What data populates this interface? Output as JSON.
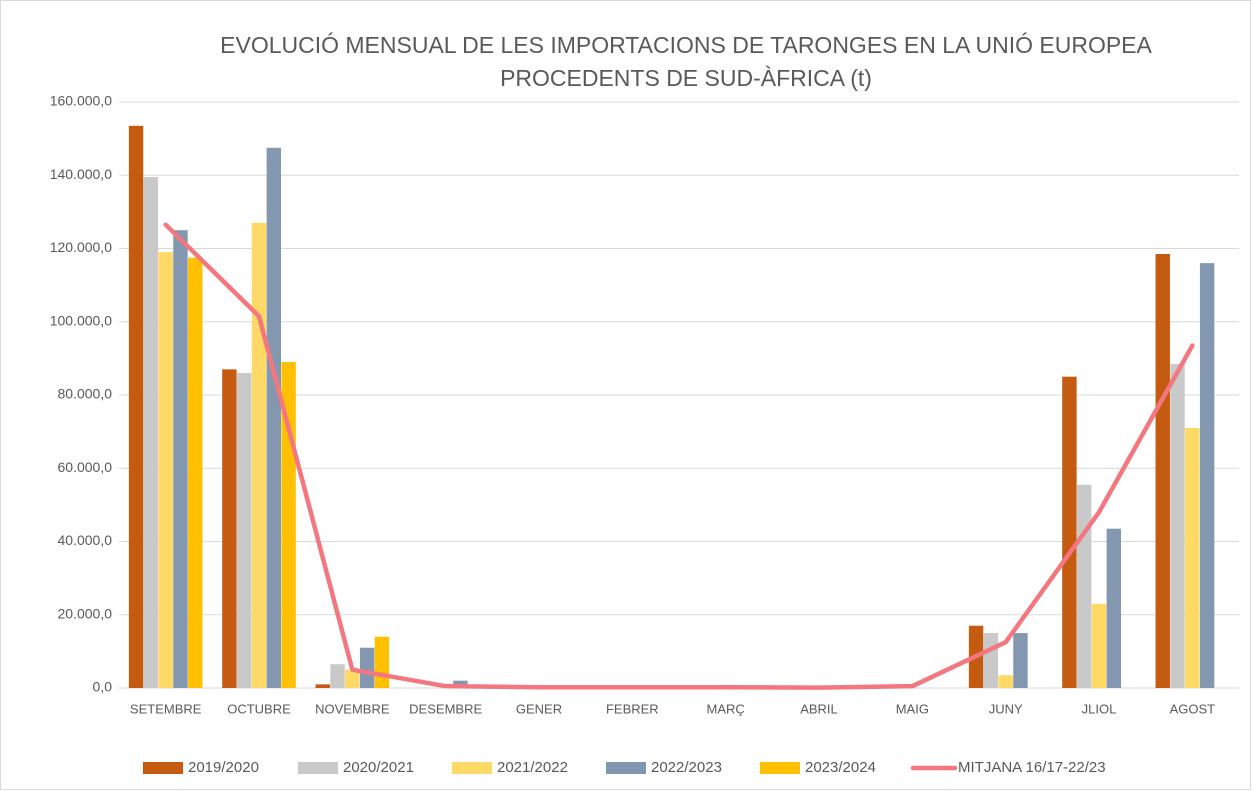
{
  "chart_data": {
    "type": "bar",
    "title": [
      "EVOLUCIÓ MENSUAL DE LES IMPORTACIONS DE TARONGES EN LA UNIÓ EUROPEA",
      "PROCEDENTS DE SUD-ÀFRICA (t)"
    ],
    "categories": [
      "SETEMBRE",
      "OCTUBRE",
      "NOVEMBRE",
      "DESEMBRE",
      "GENER",
      "FEBRER",
      "MARÇ",
      "ABRIL",
      "MAIG",
      "JUNY",
      "JLIOL",
      "AGOST"
    ],
    "series": [
      {
        "name": "2019/2020",
        "color": "#c55a11",
        "values": [
          153500,
          87000,
          1000,
          0,
          0,
          0,
          0,
          0,
          0,
          17000,
          85000,
          118500
        ]
      },
      {
        "name": "2020/2021",
        "color": "#c9c9c9",
        "values": [
          139500,
          86000,
          6500,
          0,
          0,
          0,
          0,
          0,
          0,
          15000,
          55500,
          88500
        ]
      },
      {
        "name": "2021/2022",
        "color": "#ffd966",
        "values": [
          119000,
          127000,
          5000,
          0,
          0,
          0,
          0,
          0,
          0,
          3500,
          23000,
          71000
        ]
      },
      {
        "name": "2022/2023",
        "color": "#8497b0",
        "values": [
          125000,
          147500,
          11000,
          2000,
          0,
          0,
          0,
          0,
          0,
          15000,
          43500,
          116000
        ]
      },
      {
        "name": "2023/2024",
        "color": "#ffc000",
        "values": [
          117500,
          89000,
          14000,
          null,
          null,
          null,
          null,
          null,
          null,
          null,
          null,
          null
        ]
      },
      {
        "name": "MITJANA 16/17-22/23",
        "color": "#f4777f",
        "type": "line",
        "values": [
          126500,
          101500,
          5000,
          500,
          200,
          200,
          200,
          100,
          500,
          12500,
          48000,
          93500
        ]
      }
    ],
    "ylim": [
      0,
      160000
    ],
    "yticks": [
      {
        "value": 0,
        "label": "0,0"
      },
      {
        "value": 20000,
        "label": "20.000,0"
      },
      {
        "value": 40000,
        "label": "40.000,0"
      },
      {
        "value": 60000,
        "label": "60.000,0"
      },
      {
        "value": 80000,
        "label": "80.000,0"
      },
      {
        "value": 100000,
        "label": "100.000,0"
      },
      {
        "value": 120000,
        "label": "120.000,0"
      },
      {
        "value": 140000,
        "label": "140.000,0"
      },
      {
        "value": 160000,
        "label": "160.000,0"
      }
    ],
    "grid": true,
    "legend": "bottom"
  }
}
